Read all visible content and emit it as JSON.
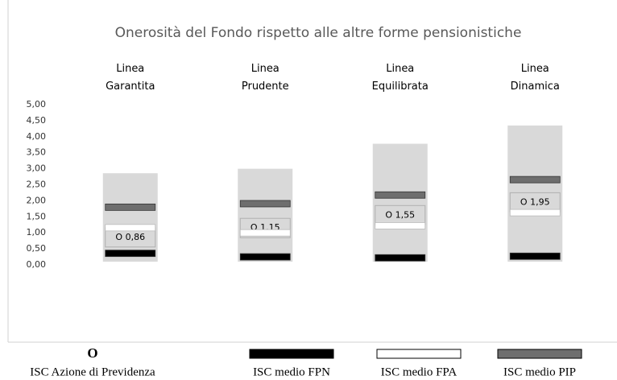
{
  "chart_data": {
    "type": "range_bar",
    "title": "Onerosità del Fondo rispetto alle altre forme pensionistiche",
    "categories": [
      "Linea Garantita",
      "Linea Prudente",
      "Linea Equilibrata",
      "Linea Dinamica"
    ],
    "ylim": [
      0,
      5
    ],
    "yticks": [
      {
        "value": 0,
        "label": "0,00"
      },
      {
        "value": 0.5,
        "label": "0,50"
      },
      {
        "value": 1,
        "label": "1,00"
      },
      {
        "value": 1.5,
        "label": "1,50"
      },
      {
        "value": 2,
        "label": "2,00"
      },
      {
        "value": 2.5,
        "label": "2,50"
      },
      {
        "value": 3,
        "label": "3,00"
      },
      {
        "value": 3.5,
        "label": "3,50"
      },
      {
        "value": 4,
        "label": "4,00"
      },
      {
        "value": 4.5,
        "label": "4,50"
      },
      {
        "value": 5,
        "label": "5,00"
      }
    ],
    "range": {
      "color": "#d9d9d9",
      "low": [
        0.1,
        0.1,
        0.1,
        0.1
      ],
      "high": [
        2.86,
        3.0,
        3.78,
        4.35
      ]
    },
    "series": [
      {
        "name": "ISC Azione di Previdenza",
        "marker": "O",
        "color": "#000000",
        "values": [
          0.86,
          1.15,
          1.55,
          1.95
        ],
        "value_labels": [
          "O 0,86",
          "O 1.15",
          "O 1,55",
          "O 1,95"
        ]
      },
      {
        "name": "ISC medio FPN",
        "color": "#000000",
        "values": [
          0.36,
          0.25,
          0.22,
          0.27
        ]
      },
      {
        "name": "ISC medio FPA",
        "color": "#ffffff",
        "values": [
          1.16,
          1.0,
          1.22,
          1.63
        ]
      },
      {
        "name": "ISC medio PIP",
        "color": "#6e6e6e",
        "values": [
          1.8,
          1.91,
          2.18,
          2.66
        ]
      }
    ]
  }
}
